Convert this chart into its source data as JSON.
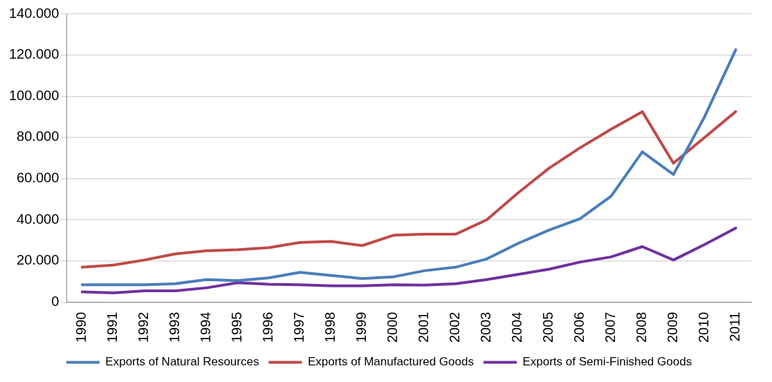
{
  "chart_data": {
    "type": "line",
    "categories": [
      "1990",
      "1991",
      "1992",
      "1993",
      "1994",
      "1995",
      "1996",
      "1997",
      "1998",
      "1999",
      "2000",
      "2001",
      "2002",
      "2003",
      "2004",
      "2005",
      "2006",
      "2007",
      "2008",
      "2009",
      "2010",
      "2011"
    ],
    "series": [
      {
        "name": "Exports of Natural Resources",
        "color": "#4a7ebb",
        "values": [
          8500,
          8500,
          8500,
          9000,
          11000,
          10500,
          11800,
          14500,
          13000,
          11500,
          12300,
          15300,
          17000,
          21000,
          28500,
          35000,
          40500,
          51500,
          73000,
          62000,
          90000,
          122500
        ]
      },
      {
        "name": "Exports of Manufactured Goods",
        "color": "#be4b48",
        "values": [
          17000,
          18000,
          20500,
          23500,
          25000,
          25500,
          26500,
          29000,
          29500,
          27500,
          32500,
          33000,
          33000,
          40000,
          53000,
          65000,
          75000,
          84000,
          92500,
          67500,
          80000,
          92500
        ]
      },
      {
        "name": "Exports of Semi-Finished Goods",
        "color": "#7030a0",
        "values": [
          5000,
          4500,
          5500,
          5500,
          7000,
          9500,
          8700,
          8500,
          8000,
          8000,
          8500,
          8300,
          9000,
          11000,
          13500,
          16000,
          19500,
          22000,
          27000,
          20500,
          28000,
          36000
        ]
      }
    ],
    "ylim": [
      0,
      140000
    ],
    "yticks": [
      {
        "value": 0,
        "label": "0"
      },
      {
        "value": 20000,
        "label": "20.000"
      },
      {
        "value": 40000,
        "label": "40.000"
      },
      {
        "value": 60000,
        "label": "60.000"
      },
      {
        "value": 80000,
        "label": "80.000"
      },
      {
        "value": 100000,
        "label": "100.000"
      },
      {
        "value": 120000,
        "label": "120.000"
      },
      {
        "value": 140000,
        "label": "140.000"
      }
    ],
    "grid": "y",
    "legend": "bottom",
    "marker": "none",
    "line_style": "solid"
  }
}
